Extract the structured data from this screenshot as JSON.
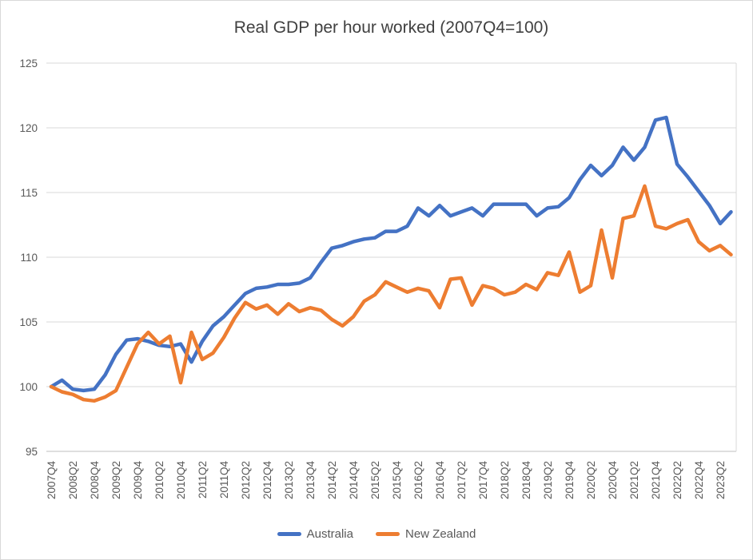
{
  "chart_data": {
    "type": "line",
    "title": "Real GDP per hour worked (2007Q4=100)",
    "ylim": [
      95,
      125
    ],
    "y_ticks": [
      95,
      100,
      105,
      110,
      115,
      120,
      125
    ],
    "grid": true,
    "legend_position": "bottom",
    "x_tick_step": 2,
    "x_tick_rotation": -90,
    "categories": [
      "2007Q4",
      "2008Q1",
      "2008Q2",
      "2008Q3",
      "2008Q4",
      "2009Q1",
      "2009Q2",
      "2009Q3",
      "2009Q4",
      "2010Q1",
      "2010Q2",
      "2010Q3",
      "2010Q4",
      "2011Q1",
      "2011Q2",
      "2011Q3",
      "2011Q4",
      "2012Q1",
      "2012Q2",
      "2012Q3",
      "2012Q4",
      "2013Q1",
      "2013Q2",
      "2013Q3",
      "2013Q4",
      "2014Q1",
      "2014Q2",
      "2014Q3",
      "2014Q4",
      "2015Q1",
      "2015Q2",
      "2015Q3",
      "2015Q4",
      "2016Q1",
      "2016Q2",
      "2016Q3",
      "2016Q4",
      "2017Q1",
      "2017Q2",
      "2017Q3",
      "2017Q4",
      "2018Q1",
      "2018Q2",
      "2018Q3",
      "2018Q4",
      "2019Q1",
      "2019Q2",
      "2019Q3",
      "2019Q4",
      "2020Q1",
      "2020Q2",
      "2020Q3",
      "2020Q4",
      "2021Q1",
      "2021Q2",
      "2021Q3",
      "2021Q4",
      "2022Q1",
      "2022Q2",
      "2022Q3",
      "2022Q4",
      "2023Q1",
      "2023Q2",
      "2023Q3"
    ],
    "series": [
      {
        "name": "Australia",
        "color": "#4472C4",
        "values": [
          100.0,
          100.5,
          99.8,
          99.7,
          99.8,
          100.9,
          102.5,
          103.6,
          103.7,
          103.5,
          103.2,
          103.1,
          103.3,
          101.9,
          103.5,
          104.7,
          105.4,
          106.3,
          107.2,
          107.6,
          107.7,
          107.9,
          107.9,
          108.0,
          108.4,
          109.6,
          110.7,
          110.9,
          111.2,
          111.4,
          111.5,
          112.0,
          112.0,
          112.4,
          113.8,
          113.2,
          114.0,
          113.2,
          113.5,
          113.8,
          113.2,
          114.1,
          114.1,
          114.1,
          114.1,
          113.2,
          113.8,
          113.9,
          114.6,
          116.0,
          117.1,
          116.3,
          117.1,
          118.5,
          117.5,
          118.5,
          120.6,
          120.8,
          117.2,
          116.2,
          115.1,
          114.0,
          112.6,
          113.5
        ]
      },
      {
        "name": "New Zealand",
        "color": "#ED7D31",
        "values": [
          100.0,
          99.6,
          99.4,
          99.0,
          98.9,
          99.2,
          99.7,
          101.5,
          103.3,
          104.2,
          103.3,
          103.9,
          100.3,
          104.2,
          102.1,
          102.6,
          103.8,
          105.3,
          106.5,
          106.0,
          106.3,
          105.6,
          106.4,
          105.8,
          106.1,
          105.9,
          105.2,
          104.7,
          105.4,
          106.6,
          107.1,
          108.1,
          107.7,
          107.3,
          107.6,
          107.4,
          106.1,
          108.3,
          108.4,
          106.3,
          107.8,
          107.6,
          107.1,
          107.3,
          107.9,
          107.5,
          108.8,
          108.6,
          110.4,
          107.3,
          107.8,
          112.1,
          108.4,
          113.0,
          113.2,
          115.5,
          112.4,
          112.2,
          112.6,
          112.9,
          111.2,
          110.5,
          110.9,
          110.2
        ]
      }
    ],
    "colors": {
      "gridline": "#D9D9D9",
      "axis_line": "#BFBFBF",
      "tick_label": "#595959",
      "title": "#404040"
    }
  }
}
